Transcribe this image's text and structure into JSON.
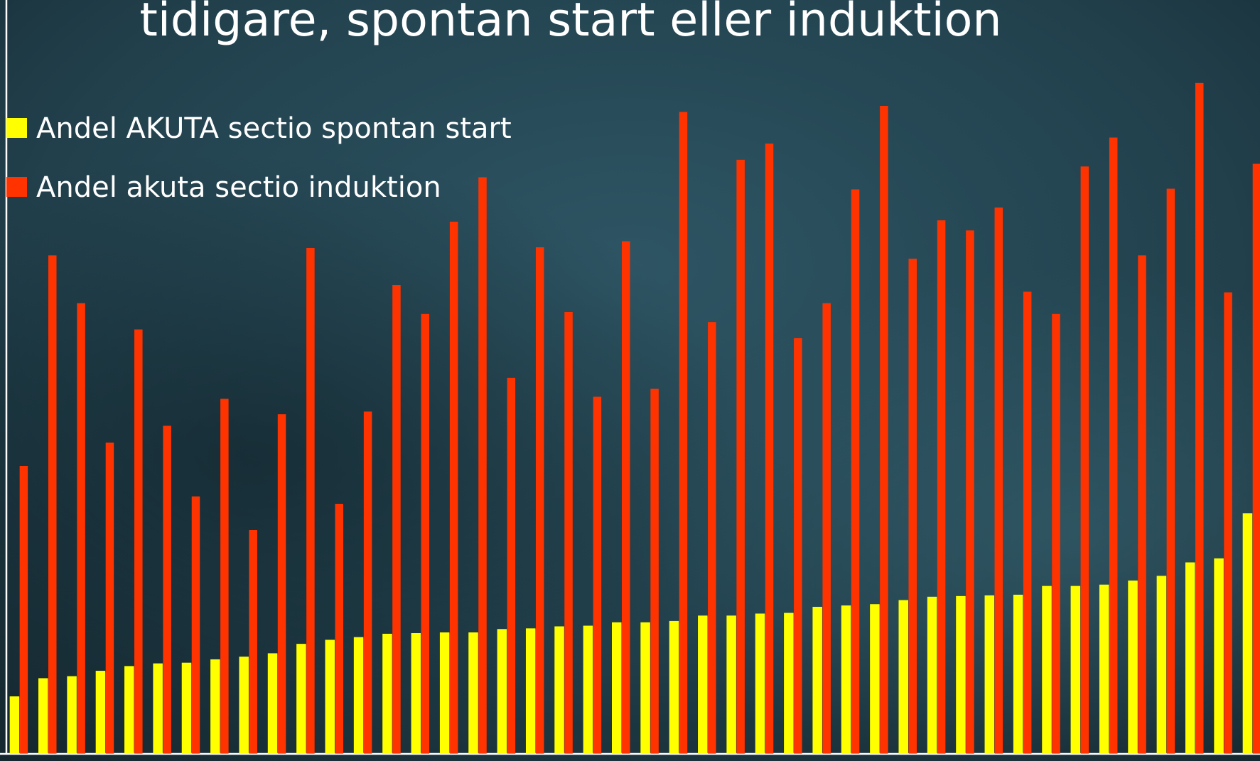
{
  "chart_data": {
    "type": "bar",
    "title": "tidigare, spontan start eller induktion",
    "ylim": [
      0,
      100
    ],
    "series": [
      {
        "name": "Andel AKUTA sectio spontan start",
        "color": "#ffff00",
        "values": [
          8.5,
          11.2,
          11.5,
          12.3,
          13.0,
          13.4,
          13.5,
          14.0,
          14.4,
          14.9,
          16.3,
          16.9,
          17.3,
          17.8,
          17.9,
          18.0,
          18.0,
          18.5,
          18.6,
          18.9,
          19.0,
          19.5,
          19.5,
          19.7,
          20.5,
          20.5,
          20.8,
          20.9,
          21.8,
          22.0,
          22.2,
          22.8,
          23.3,
          23.4,
          23.5,
          23.6,
          24.9,
          24.9,
          25.1,
          25.7,
          26.4,
          28.4,
          29.0,
          35.7
        ]
      },
      {
        "name": "Andel akuta sectio induktion",
        "color": "#ff3300",
        "values": [
          42.7,
          74.0,
          66.9,
          46.2,
          63.0,
          48.7,
          38.2,
          52.7,
          33.2,
          50.4,
          75.1,
          37.1,
          50.8,
          69.6,
          65.3,
          79.0,
          85.6,
          55.8,
          75.2,
          65.6,
          53.0,
          76.1,
          54.2,
          95.3,
          64.1,
          88.2,
          90.6,
          61.7,
          66.9,
          83.8,
          96.2,
          73.5,
          79.2,
          77.7,
          81.1,
          68.6,
          65.3,
          87.2,
          91.5,
          74.0,
          83.9,
          99.6,
          68.5,
          87.6
        ]
      }
    ]
  }
}
